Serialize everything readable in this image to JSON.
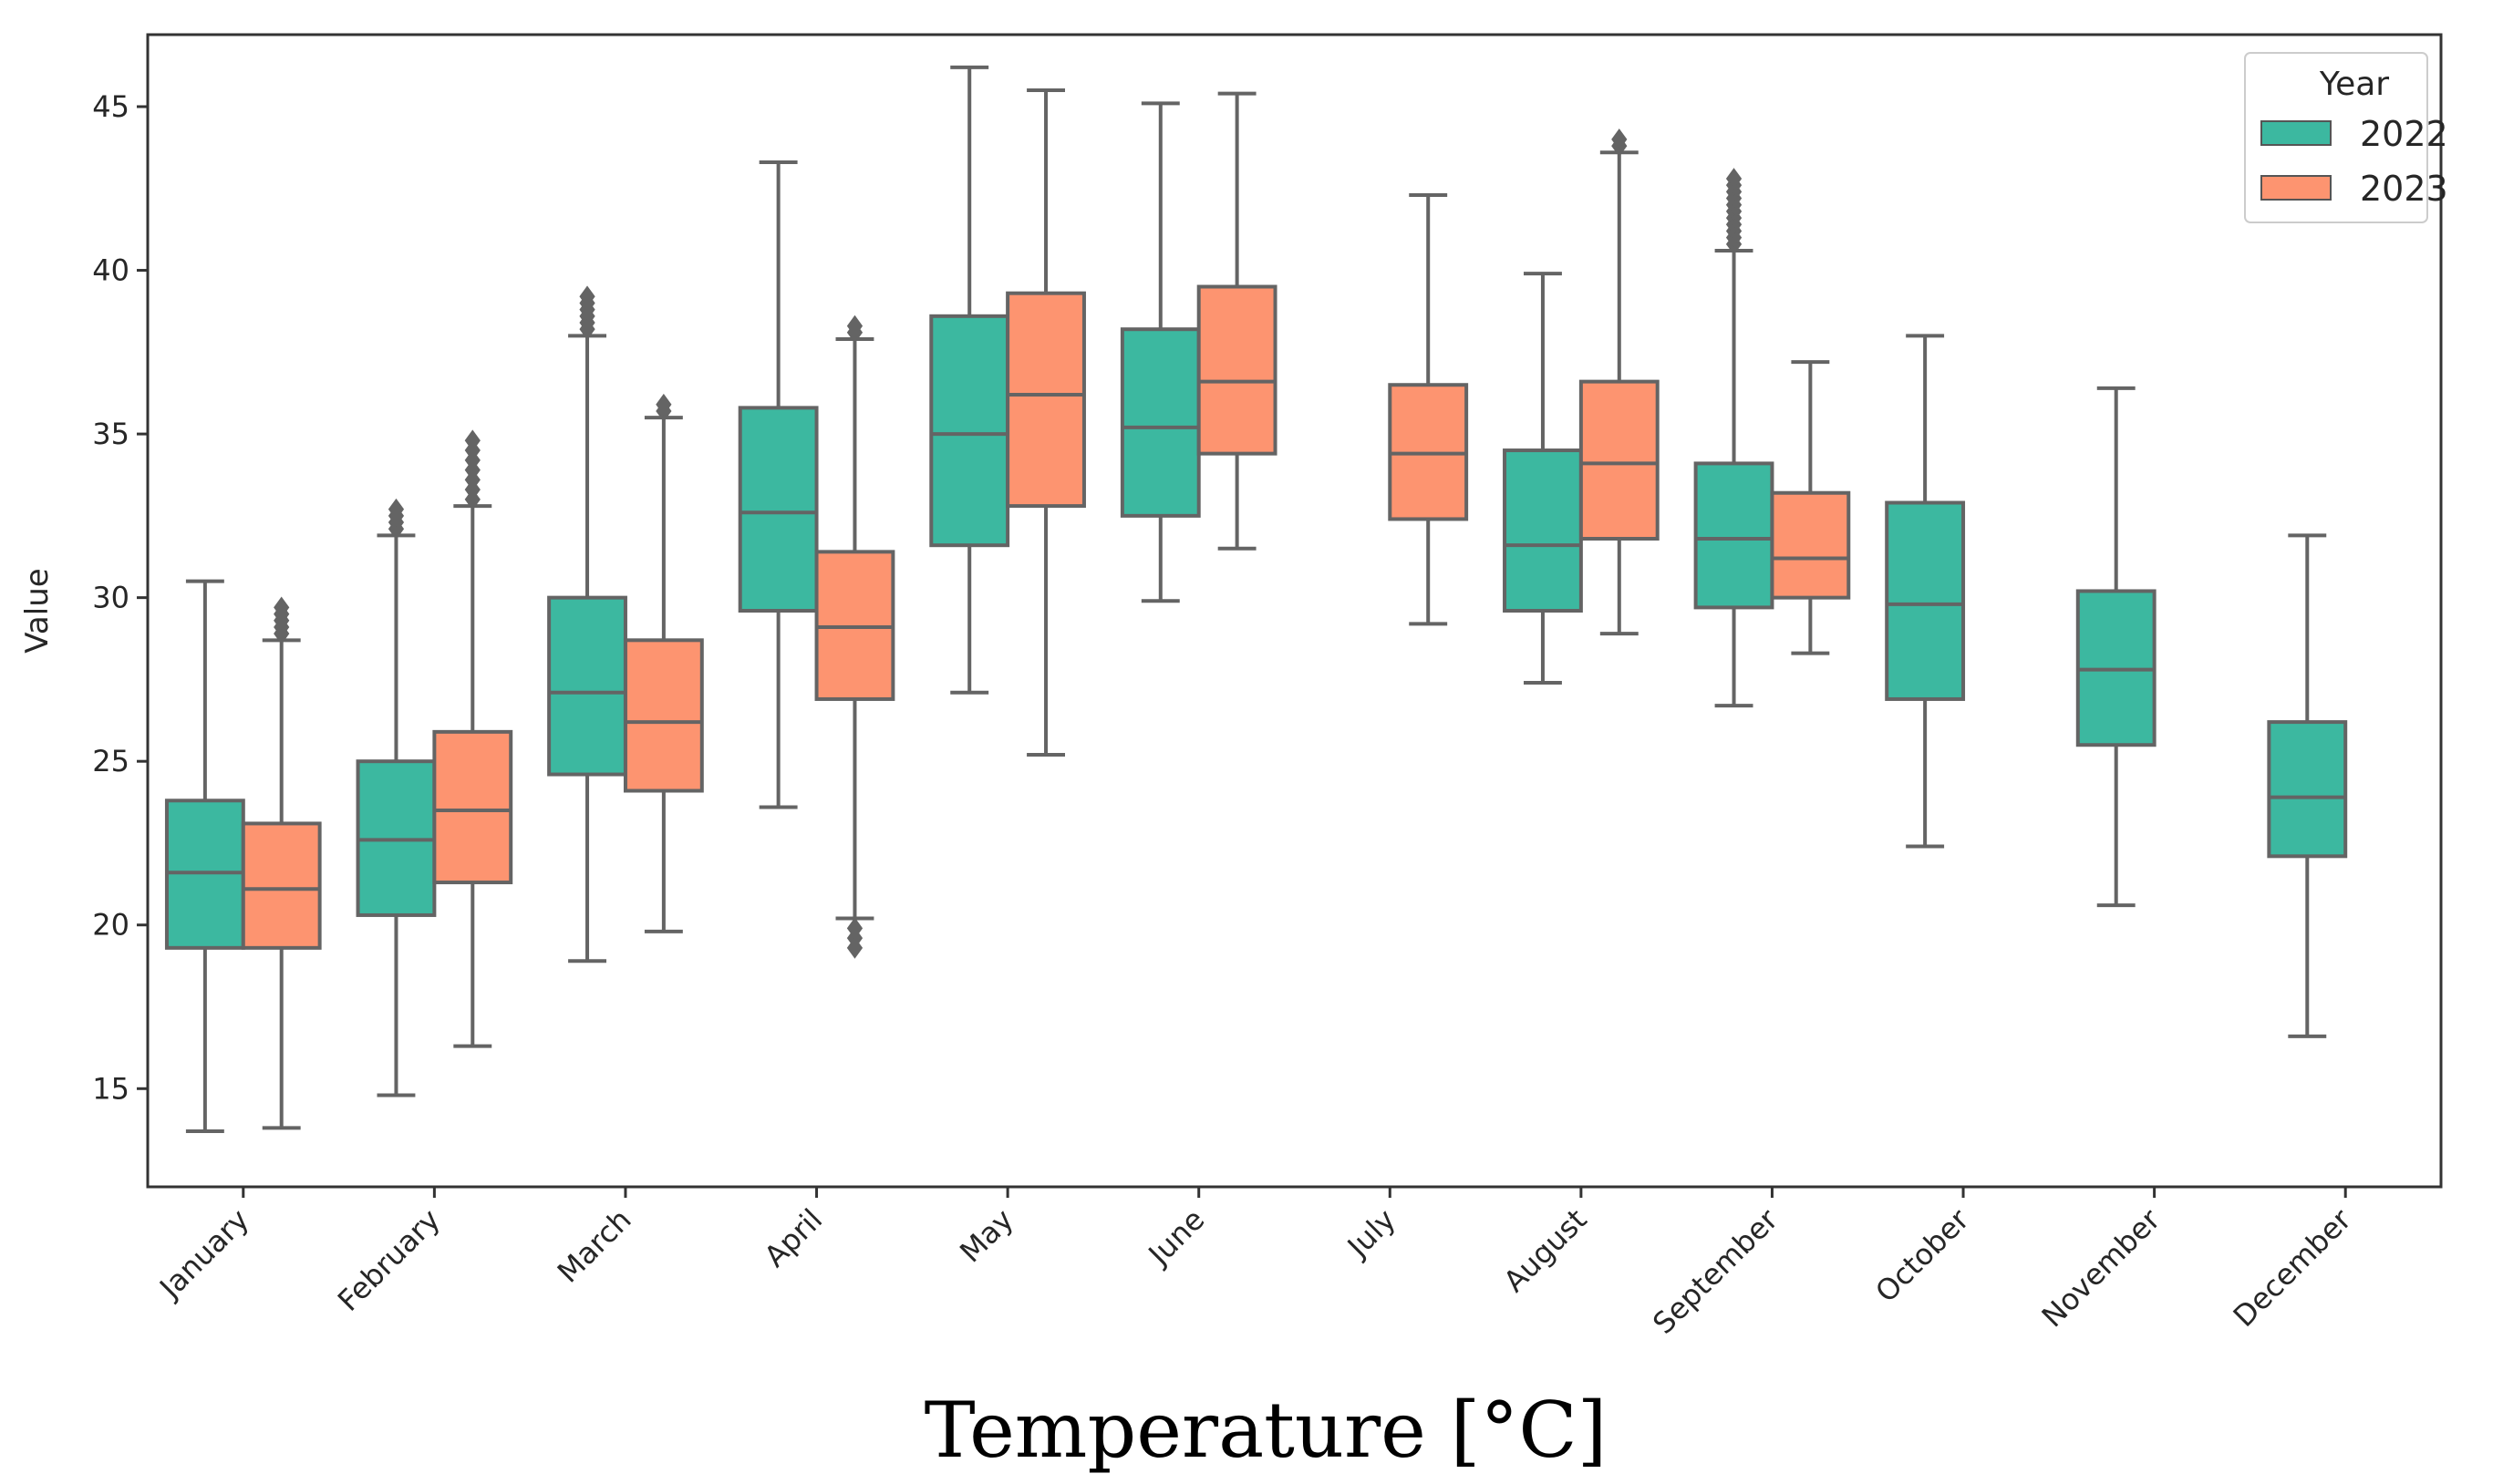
{
  "chart_data": {
    "type": "box",
    "title": "",
    "xlabel": "Temperature [°C]",
    "ylabel": "Value",
    "ylim": [
      12,
      47.2
    ],
    "yticks": [
      15,
      20,
      25,
      30,
      35,
      40,
      45
    ],
    "categories": [
      "January",
      "February",
      "March",
      "April",
      "May",
      "June",
      "July",
      "August",
      "September",
      "October",
      "November",
      "December"
    ],
    "legend": {
      "title": "Year",
      "position": "top-right"
    },
    "colors": {
      "2022": "#3cb8a0",
      "2023": "#fd9470",
      "stroke": "#646464"
    },
    "series": [
      {
        "name": "2022",
        "boxes": [
          {
            "month": "January",
            "whisker_low": 13.7,
            "q1": 19.3,
            "median": 21.6,
            "q3": 23.8,
            "whisker_high": 30.5,
            "outliers": []
          },
          {
            "month": "February",
            "whisker_low": 14.8,
            "q1": 20.3,
            "median": 22.6,
            "q3": 25.0,
            "whisker_high": 31.9,
            "outliers": [
              32.1,
              32.3,
              32.5,
              32.7
            ]
          },
          {
            "month": "March",
            "whisker_low": 18.9,
            "q1": 24.6,
            "median": 27.1,
            "q3": 30.0,
            "whisker_high": 38.0,
            "outliers": [
              38.2,
              38.4,
              38.6,
              38.8,
              39.0,
              39.2
            ]
          },
          {
            "month": "April",
            "whisker_low": 23.6,
            "q1": 29.6,
            "median": 32.6,
            "q3": 35.8,
            "whisker_high": 43.3,
            "outliers": []
          },
          {
            "month": "May",
            "whisker_low": 27.1,
            "q1": 31.6,
            "median": 35.0,
            "q3": 38.6,
            "whisker_high": 46.2,
            "outliers": []
          },
          {
            "month": "June",
            "whisker_low": 29.9,
            "q1": 32.5,
            "median": 35.2,
            "q3": 38.2,
            "whisker_high": 45.1,
            "outliers": []
          },
          null,
          {
            "month": "August",
            "whisker_low": 27.4,
            "q1": 29.6,
            "median": 31.6,
            "q3": 34.5,
            "whisker_high": 39.9,
            "outliers": []
          },
          {
            "month": "September",
            "whisker_low": 26.7,
            "q1": 29.7,
            "median": 31.8,
            "q3": 34.1,
            "whisker_high": 40.6,
            "outliers": [
              40.8,
              41.0,
              41.2,
              41.4,
              41.6,
              41.8,
              42.0,
              42.2,
              42.4,
              42.6,
              42.8
            ]
          },
          {
            "month": "October",
            "whisker_low": 22.4,
            "q1": 26.9,
            "median": 29.8,
            "q3": 32.9,
            "whisker_high": 38.0,
            "outliers": []
          },
          {
            "month": "November",
            "whisker_low": 20.6,
            "q1": 25.5,
            "median": 27.8,
            "q3": 30.2,
            "whisker_high": 36.4,
            "outliers": []
          },
          {
            "month": "December",
            "whisker_low": 16.6,
            "q1": 22.1,
            "median": 23.9,
            "q3": 26.2,
            "whisker_high": 31.9,
            "outliers": []
          }
        ]
      },
      {
        "name": "2023",
        "boxes": [
          {
            "month": "January",
            "whisker_low": 13.8,
            "q1": 19.3,
            "median": 21.1,
            "q3": 23.1,
            "whisker_high": 28.7,
            "outliers": [
              28.9,
              29.1,
              29.3,
              29.5,
              29.7
            ]
          },
          {
            "month": "February",
            "whisker_low": 16.3,
            "q1": 21.3,
            "median": 23.5,
            "q3": 25.9,
            "whisker_high": 32.8,
            "outliers": [
              33.0,
              33.3,
              33.6,
              33.9,
              34.2,
              34.5,
              34.8
            ]
          },
          {
            "month": "March",
            "whisker_low": 19.8,
            "q1": 24.1,
            "median": 26.2,
            "q3": 28.7,
            "whisker_high": 35.5,
            "outliers": [
              35.7,
              35.9
            ]
          },
          {
            "month": "April",
            "whisker_low": 20.2,
            "q1": 26.9,
            "median": 29.1,
            "q3": 31.4,
            "whisker_high": 37.9,
            "outliers": [
              38.1,
              38.3,
              19.9,
              19.6,
              19.3
            ]
          },
          {
            "month": "May",
            "whisker_low": 25.2,
            "q1": 32.8,
            "median": 36.2,
            "q3": 39.3,
            "whisker_high": 45.5,
            "outliers": []
          },
          {
            "month": "June",
            "whisker_low": 31.5,
            "q1": 34.4,
            "median": 36.6,
            "q3": 39.5,
            "whisker_high": 45.4,
            "outliers": []
          },
          {
            "month": "July",
            "whisker_low": 29.2,
            "q1": 32.4,
            "median": 34.4,
            "q3": 36.5,
            "whisker_high": 42.3,
            "outliers": []
          },
          {
            "month": "August",
            "whisker_low": 28.9,
            "q1": 31.8,
            "median": 34.1,
            "q3": 36.6,
            "whisker_high": 43.6,
            "outliers": [
              43.8,
              44.0
            ]
          },
          {
            "month": "September",
            "whisker_low": 28.3,
            "q1": 30.0,
            "median": 31.2,
            "q3": 33.2,
            "whisker_high": 37.2,
            "outliers": []
          },
          null,
          null,
          null
        ]
      }
    ]
  }
}
